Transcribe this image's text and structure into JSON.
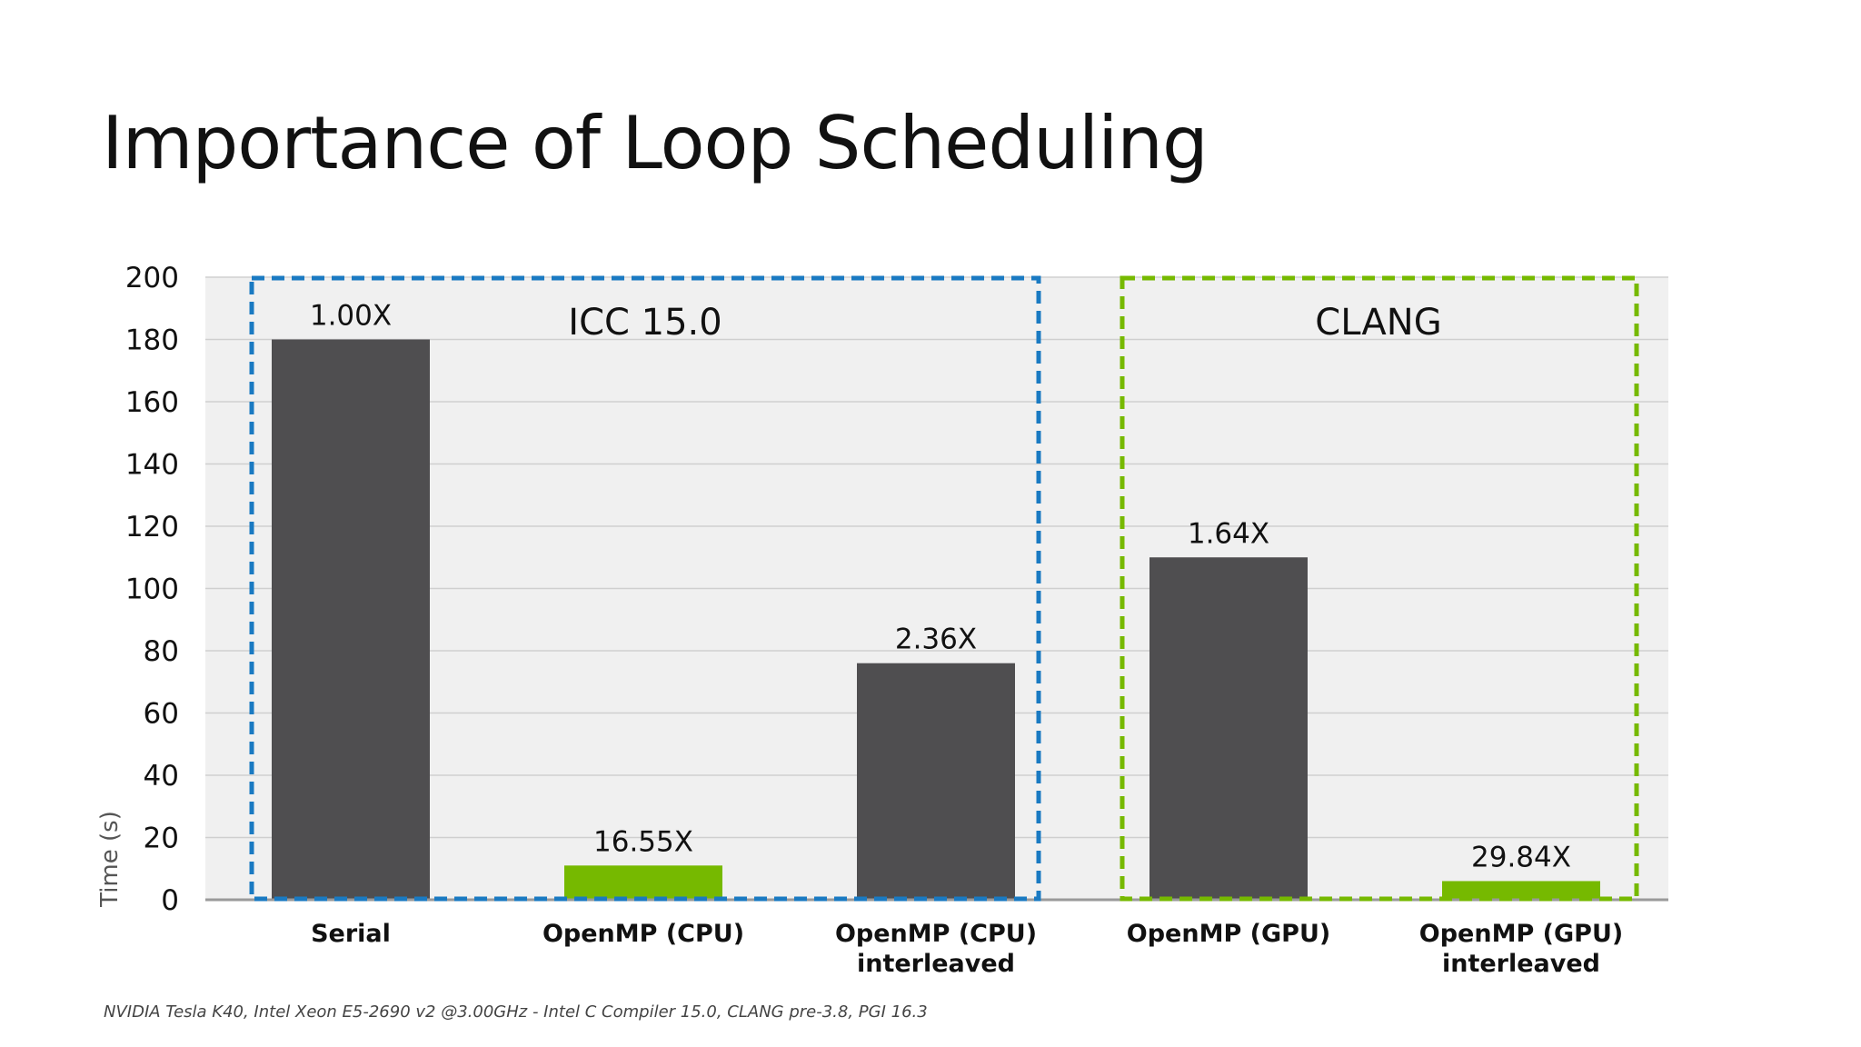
{
  "title": "Importance of Loop Scheduling",
  "footnote": "NVIDIA Tesla K40, Intel Xeon E5-2690 v2 @3.00GHz - Intel C Compiler 15.0, CLANG pre-3.8, PGI 16.3",
  "colors": {
    "dark_bar": "#4f4e50",
    "green_bar": "#76b900",
    "icc_box": "#1a7ac2",
    "clang_box": "#76b900",
    "plot_bg": "#f0f0f0",
    "grid": "#cfcfcf"
  },
  "chart_data": {
    "type": "bar",
    "categories": [
      [
        "Serial"
      ],
      [
        "OpenMP (CPU)"
      ],
      [
        "OpenMP (CPU)",
        "interleaved"
      ],
      [
        "OpenMP (GPU)"
      ],
      [
        "OpenMP (GPU)",
        "interleaved"
      ]
    ],
    "values": [
      180,
      11,
      76,
      110,
      6
    ],
    "bar_colors": [
      "dark",
      "green",
      "dark",
      "dark",
      "green"
    ],
    "data_labels": [
      "1.00X",
      "16.55X",
      "2.36X",
      "1.64X",
      "29.84X"
    ],
    "ylabel": "Time (s)",
    "ylim": [
      0,
      200
    ],
    "yticks": [
      0,
      20,
      40,
      60,
      80,
      100,
      120,
      140,
      160,
      180,
      200
    ],
    "grid": true,
    "groups": [
      {
        "label": "ICC 15.0",
        "members": [
          0,
          1,
          2
        ],
        "color": "icc_box"
      },
      {
        "label": "CLANG",
        "members": [
          3,
          4
        ],
        "color": "clang_box"
      }
    ]
  }
}
